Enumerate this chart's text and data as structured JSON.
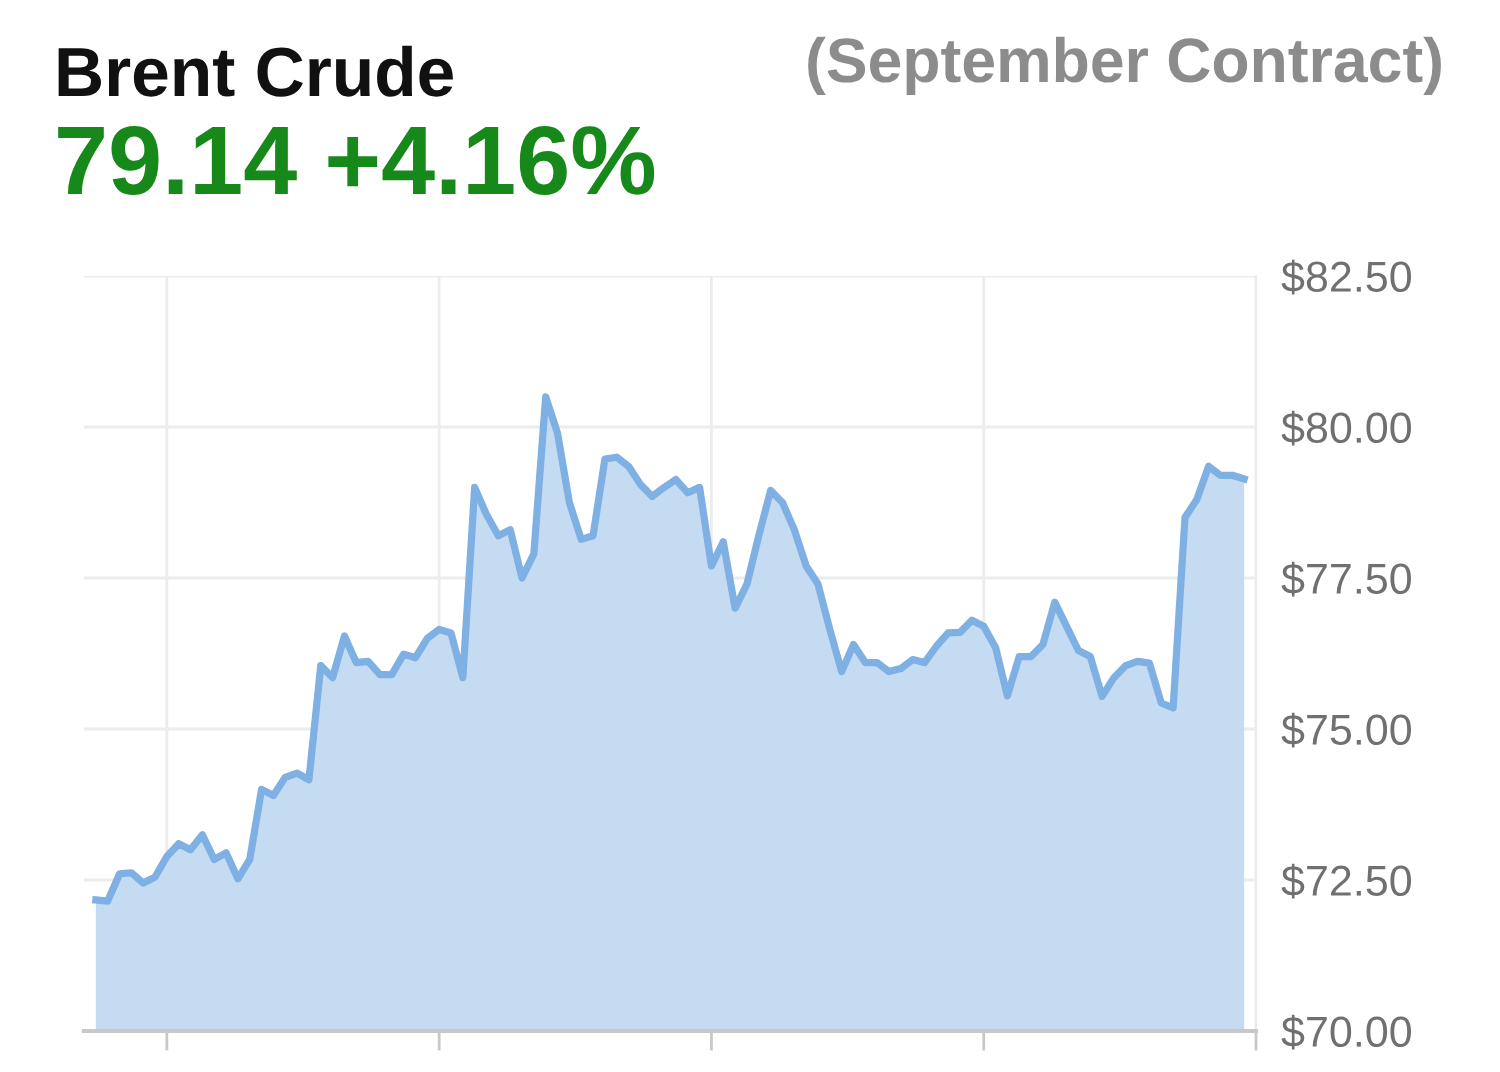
{
  "chart_data": {
    "type": "area",
    "title": "Brent Crude",
    "subtitle": "(September Contract)",
    "annotations": [
      "79.14 +4.16%"
    ],
    "categories": [
      null,
      null,
      null,
      null,
      null,
      null,
      null,
      null,
      null,
      null,
      null,
      null,
      null,
      null,
      null,
      null,
      null,
      null,
      null,
      null,
      null,
      null,
      null,
      null,
      null,
      null,
      null,
      null,
      null,
      null,
      null,
      null,
      null,
      null,
      null,
      null,
      null,
      null,
      null,
      null,
      null,
      null,
      null,
      null,
      null,
      null,
      null,
      null,
      null,
      null,
      null,
      null,
      null,
      null,
      null,
      null,
      null,
      null,
      null,
      null,
      null,
      null,
      null,
      null,
      null,
      null,
      null,
      null,
      null,
      null,
      null,
      null,
      null,
      null,
      null,
      null,
      null,
      null,
      null,
      null,
      null,
      null,
      null,
      null,
      null,
      null,
      null,
      null,
      null,
      null,
      null,
      null,
      null,
      null,
      null,
      null,
      null,
      null
    ],
    "series": [
      {
        "color": "#7eb0e3",
        "values": [
          72.17,
          72.15,
          72.6,
          72.62,
          72.45,
          72.55,
          72.89,
          73.1,
          73.0,
          73.25,
          72.84,
          72.95,
          72.52,
          72.84,
          74.0,
          73.9,
          74.2,
          74.27,
          74.16,
          76.05,
          75.85,
          76.54,
          76.1,
          76.12,
          75.9,
          75.9,
          76.24,
          76.18,
          76.5,
          76.65,
          76.59,
          75.85,
          79.0,
          78.55,
          78.2,
          78.3,
          77.5,
          77.9,
          80.5,
          79.9,
          78.75,
          78.14,
          78.2,
          79.47,
          79.5,
          79.35,
          79.05,
          78.85,
          79.0,
          79.13,
          78.91,
          79.0,
          77.7,
          78.1,
          77.0,
          77.4,
          78.2,
          78.95,
          78.75,
          78.3,
          77.7,
          77.4,
          76.65,
          75.95,
          76.4,
          76.1,
          76.1,
          75.95,
          76.0,
          76.15,
          76.1,
          76.37,
          76.59,
          76.6,
          76.8,
          76.7,
          76.35,
          75.55,
          76.2,
          76.2,
          76.4,
          77.1,
          76.7,
          76.3,
          76.2,
          75.54,
          75.85,
          76.05,
          76.12,
          76.09,
          75.43,
          75.35,
          78.5,
          78.8,
          79.35,
          79.2,
          79.2,
          79.14
        ]
      }
    ],
    "ylim": [
      70,
      82.5
    ],
    "yticks": [
      {
        "value": 70,
        "label": "$70.00"
      },
      {
        "value": 72.5,
        "label": "$72.50"
      },
      {
        "value": 75,
        "label": "$75.00"
      },
      {
        "value": 77.5,
        "label": "$77.50"
      },
      {
        "value": 80,
        "label": "$80.00"
      },
      {
        "value": 82.5,
        "label": "$82.50"
      }
    ],
    "grid": true,
    "tick_labels": "y",
    "marker": "none",
    "line_style": "solid"
  }
}
